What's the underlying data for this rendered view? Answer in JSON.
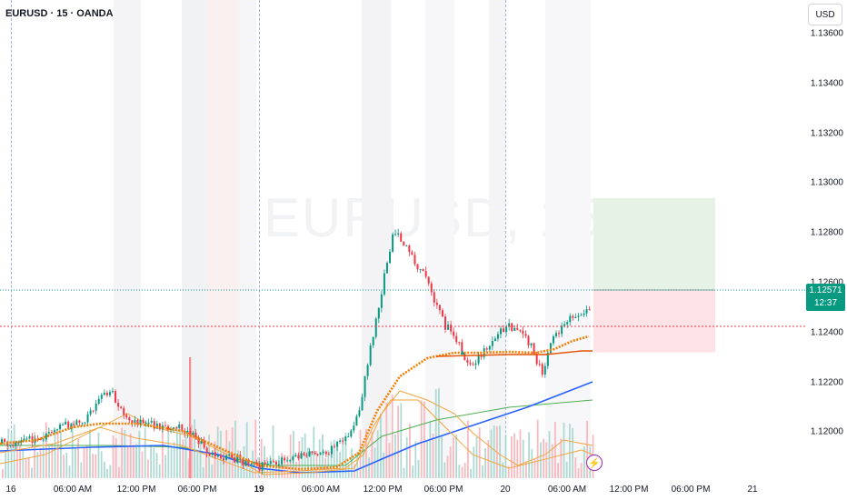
{
  "header": {
    "symbol": "EURUSD · 15 · OANDA"
  },
  "watermark": "EURUSD, 15",
  "price_axis": {
    "currency": "USD",
    "ticks": [
      "1.13600",
      "1.13400",
      "1.13200",
      "1.13000",
      "1.12800",
      "1.12600",
      "1.12400",
      "1.12200",
      "1.12000"
    ],
    "last_price": "1.12571",
    "countdown": "12:37"
  },
  "time_axis": {
    "ticks": [
      {
        "label": "16",
        "bold": false
      },
      {
        "label": "06:00 AM",
        "bold": false
      },
      {
        "label": "12:00 PM",
        "bold": false
      },
      {
        "label": "06:00 PM",
        "bold": false
      },
      {
        "label": "19",
        "bold": true
      },
      {
        "label": "06:00 AM",
        "bold": false
      },
      {
        "label": "12:00 PM",
        "bold": false
      },
      {
        "label": "06:00 PM",
        "bold": false
      },
      {
        "label": "20",
        "bold": false
      },
      {
        "label": "06:00 AM",
        "bold": false
      },
      {
        "label": "12:00 PM",
        "bold": false
      },
      {
        "label": "06:00 PM",
        "bold": false
      },
      {
        "label": "21",
        "bold": false
      }
    ]
  },
  "position_tool": {
    "entry": 1.12571,
    "take_profit": 1.1294,
    "stop_loss": 1.1232
  },
  "levels": {
    "red_dotted": 1.12425,
    "current": 1.12571
  },
  "colors": {
    "up": "#089981",
    "down": "#f23645",
    "ema_orange": "#f57c00",
    "ma_blue": "#2962ff",
    "ma_green": "#4caf50",
    "ma_darkorange": "#e65100",
    "profit_zone": "#e6f2e6",
    "loss_zone": "#fde3e5"
  },
  "icons": {
    "alert": "lightning-icon"
  }
}
